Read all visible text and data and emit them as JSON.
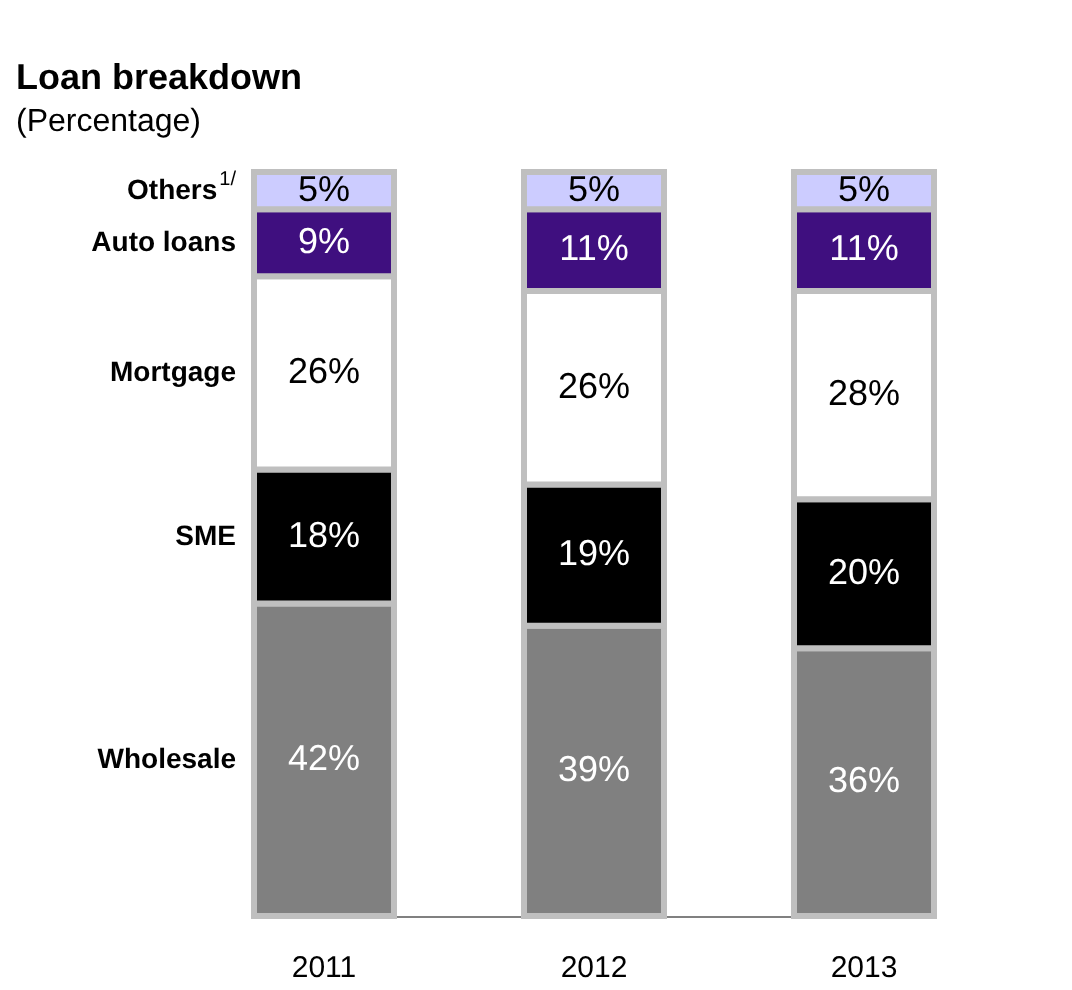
{
  "chart_data": {
    "type": "bar",
    "title": "Loan breakdown",
    "subtitle": "(Percentage)",
    "categories": [
      "2011",
      "2012",
      "2013"
    ],
    "stacked": true,
    "tick_labels": "x",
    "series": [
      {
        "name": "Wholesale",
        "color": "#808080",
        "values": [
          42,
          39,
          36
        ],
        "value_labels": [
          "42%",
          "39%",
          "36%"
        ]
      },
      {
        "name": "SME",
        "color": "#000000",
        "values": [
          18,
          19,
          20
        ],
        "value_labels": [
          "18%",
          "19%",
          "20%"
        ]
      },
      {
        "name": "Mortgage",
        "color": "#ffffff",
        "values": [
          26,
          26,
          28
        ],
        "value_labels": [
          "26%",
          "26%",
          "28%"
        ]
      },
      {
        "name": "Auto loans",
        "color": "#3f0f7f",
        "values": [
          9,
          11,
          11
        ],
        "value_labels": [
          "9%",
          "11%",
          "11%"
        ]
      },
      {
        "name": "Others$^{1/}$",
        "color": "#ccccff",
        "values": [
          5,
          5,
          5
        ],
        "value_labels": [
          "5%",
          "5%",
          "5%"
        ]
      }
    ]
  }
}
